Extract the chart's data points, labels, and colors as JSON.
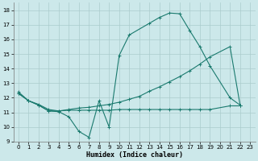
{
  "line1_x": [
    0,
    1,
    2,
    3,
    4,
    5,
    6,
    7,
    8,
    9,
    10,
    11,
    13,
    14,
    15,
    16,
    17,
    18,
    19,
    21,
    22
  ],
  "line1_y": [
    12.4,
    11.8,
    11.5,
    11.1,
    11.05,
    10.7,
    9.7,
    9.3,
    11.8,
    10.0,
    14.9,
    16.3,
    17.1,
    17.5,
    17.8,
    17.75,
    16.6,
    15.5,
    14.2,
    12.0,
    11.5
  ],
  "line2_x": [
    0,
    1,
    2,
    3,
    4,
    5,
    6,
    7,
    8,
    9,
    10,
    11,
    12,
    13,
    14,
    15,
    16,
    17,
    18,
    19,
    21,
    22
  ],
  "line2_y": [
    12.3,
    11.8,
    11.55,
    11.2,
    11.1,
    11.2,
    11.3,
    11.35,
    11.45,
    11.55,
    11.7,
    11.9,
    12.1,
    12.45,
    12.75,
    13.1,
    13.45,
    13.85,
    14.3,
    14.8,
    15.5,
    11.5
  ],
  "line3_x": [
    0,
    1,
    2,
    3,
    4,
    5,
    6,
    7,
    8,
    9,
    10,
    11,
    12,
    13,
    14,
    15,
    16,
    17,
    18,
    19,
    21,
    22
  ],
  "line3_y": [
    12.3,
    11.8,
    11.5,
    11.1,
    11.1,
    11.15,
    11.15,
    11.15,
    11.15,
    11.15,
    11.2,
    11.2,
    11.2,
    11.2,
    11.2,
    11.2,
    11.2,
    11.2,
    11.2,
    11.2,
    11.45,
    11.45
  ],
  "xlim": [
    -0.5,
    23.5
  ],
  "ylim": [
    9,
    18.5
  ],
  "yticks": [
    9,
    10,
    11,
    12,
    13,
    14,
    15,
    16,
    17,
    18
  ],
  "xticks": [
    0,
    1,
    2,
    3,
    4,
    5,
    6,
    7,
    8,
    9,
    10,
    11,
    12,
    13,
    14,
    15,
    16,
    17,
    18,
    19,
    20,
    21,
    22,
    23
  ],
  "xlabel": "Humidex (Indice chaleur)",
  "bg_color": "#cce8ea",
  "grid_color": "#aacccc",
  "line_color": "#1a7a6e",
  "tick_fontsize": 5.0,
  "xlabel_fontsize": 6.0,
  "linewidth": 0.8,
  "markersize": 3.0
}
